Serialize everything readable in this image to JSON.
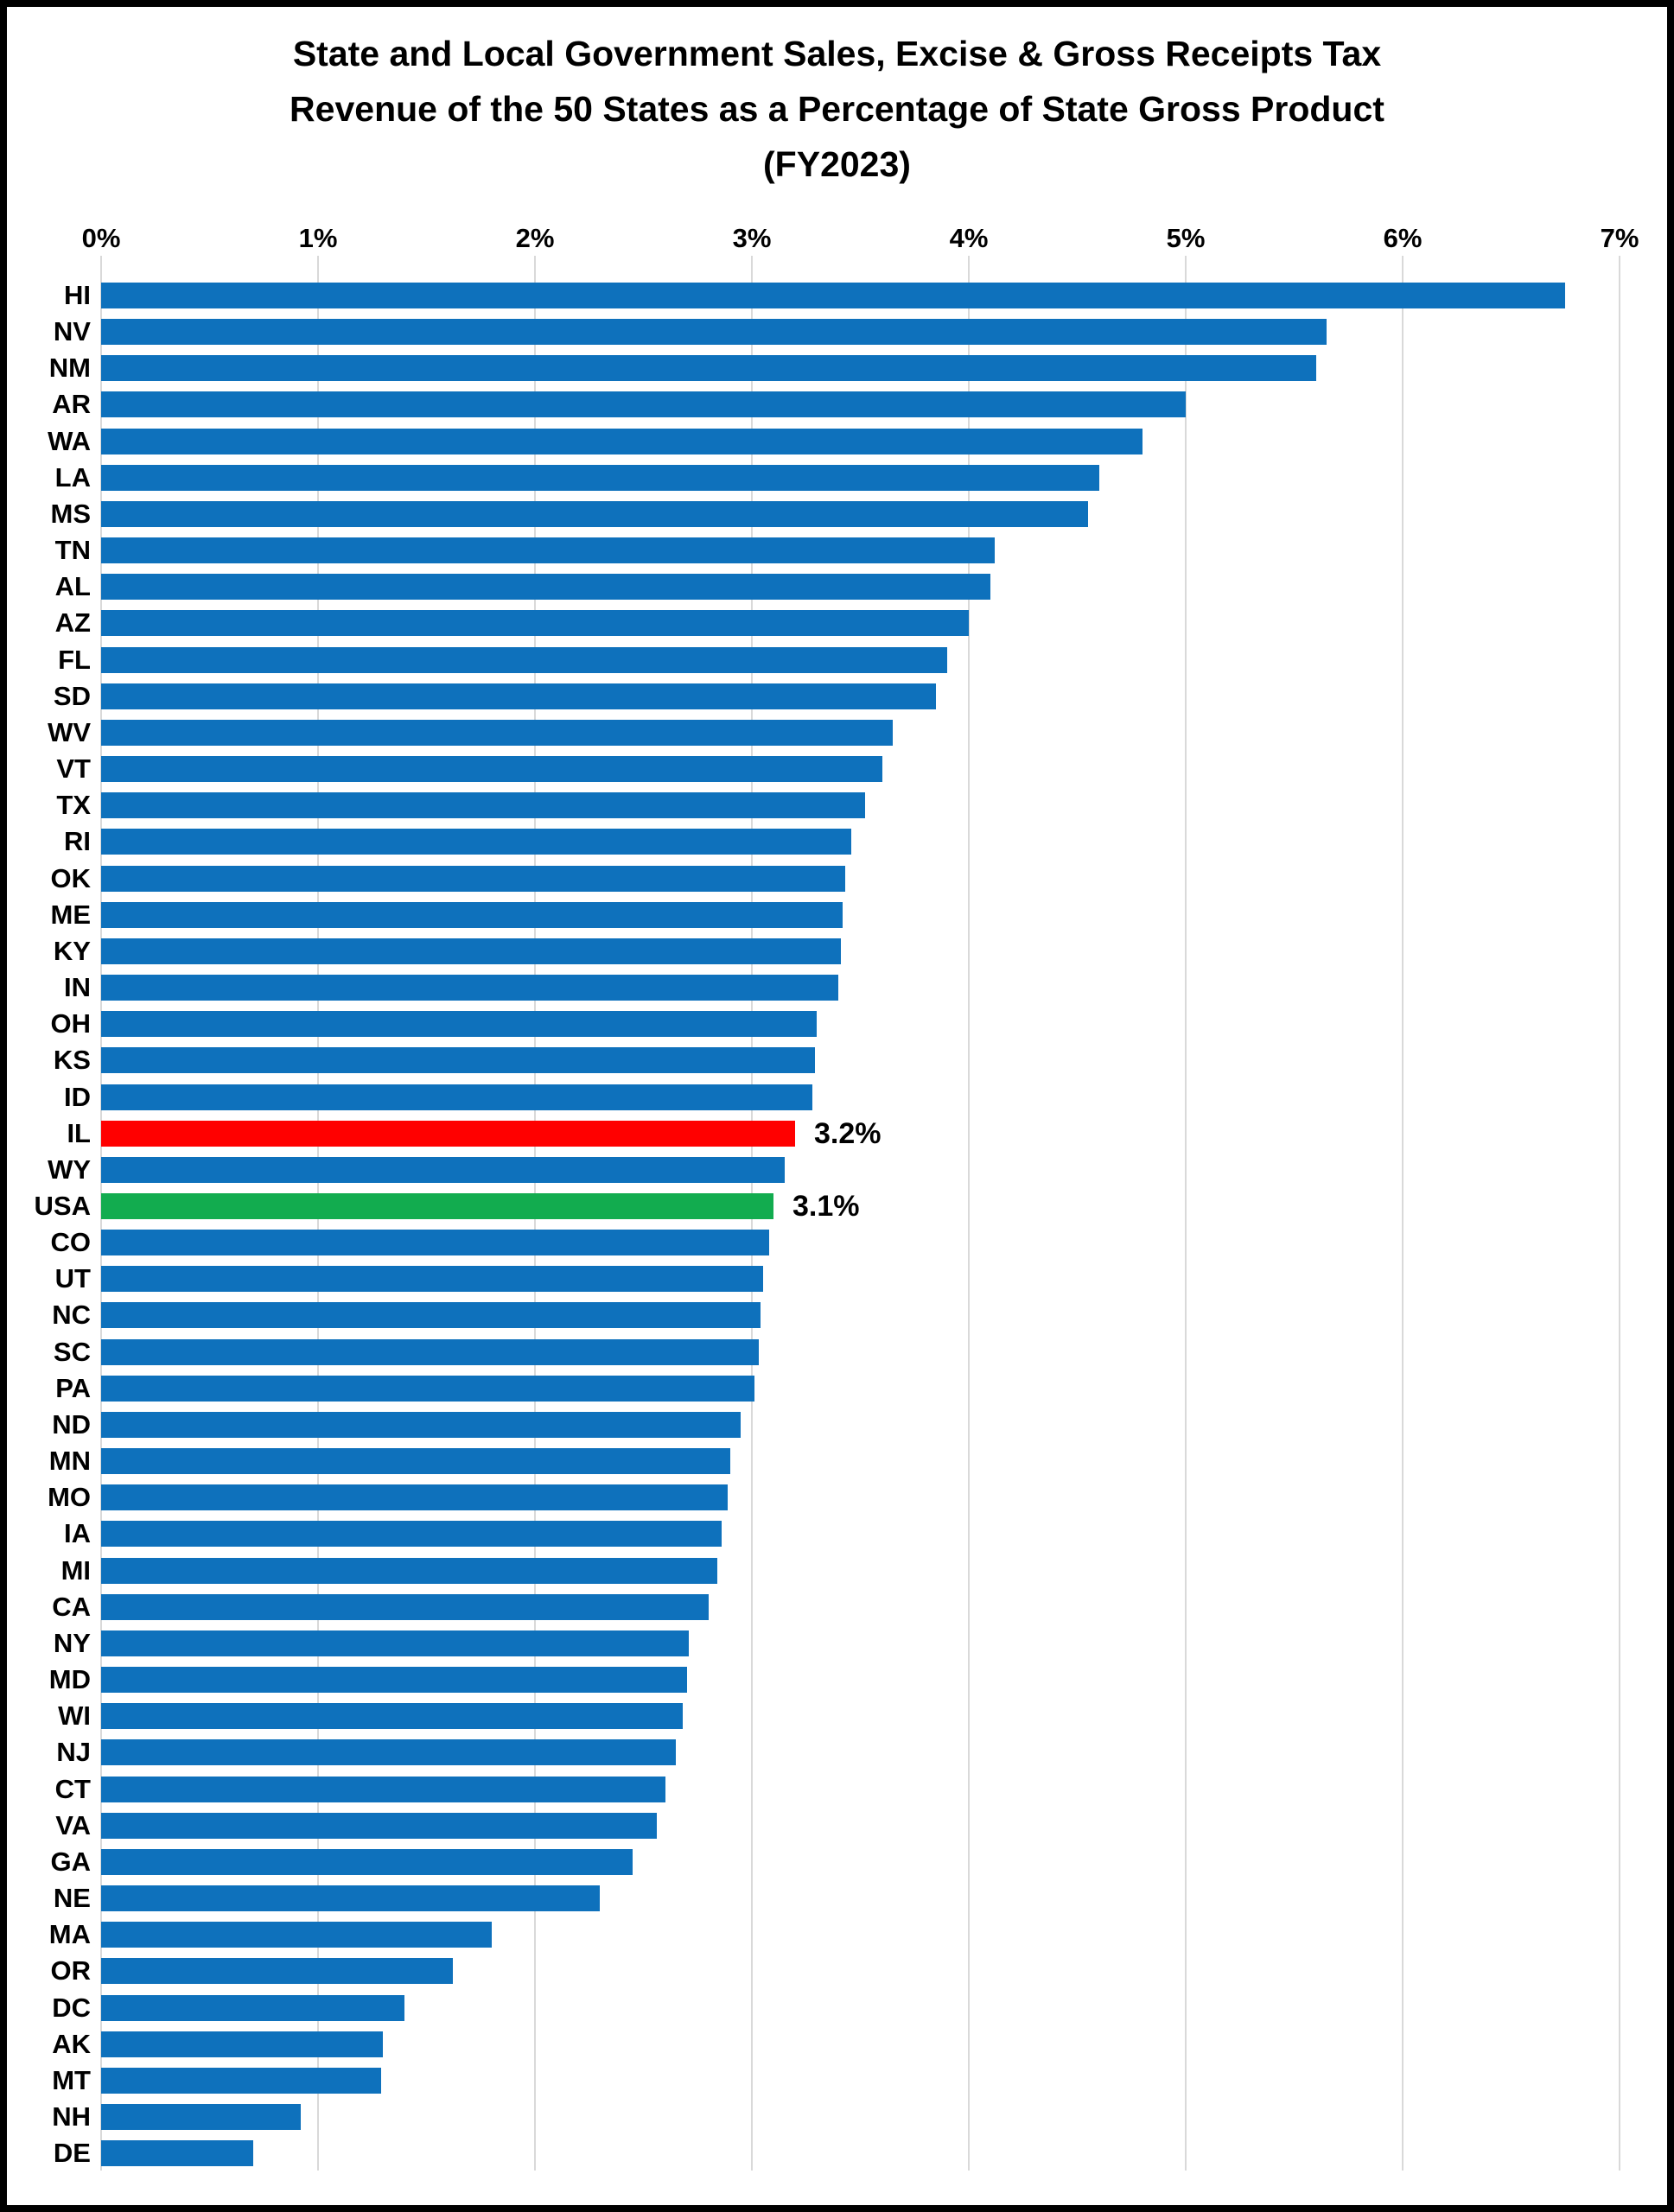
{
  "chart_data": {
    "type": "bar",
    "orientation": "horizontal",
    "title_lines": [
      "State and Local Government Sales, Excise & Gross Receipts Tax",
      "Revenue of the 50 States as a Percentage of State Gross Product",
      "(FY2023)"
    ],
    "x_ticks": [
      "0%",
      "1%",
      "2%",
      "3%",
      "4%",
      "5%",
      "6%",
      "7%"
    ],
    "xlim": [
      0,
      7
    ],
    "grid": true,
    "unit": "percent of state gross product",
    "colors": {
      "bar_default": "#0e71bc",
      "bar_highlight_red": "#ff0000",
      "bar_highlight_green": "#12ac4f",
      "gridline": "#d9d9d9",
      "text": "#000000"
    },
    "rows": [
      {
        "state": "HI",
        "value": 6.75
      },
      {
        "state": "NV",
        "value": 5.65
      },
      {
        "state": "NM",
        "value": 5.6
      },
      {
        "state": "AR",
        "value": 5.0
      },
      {
        "state": "WA",
        "value": 4.8
      },
      {
        "state": "LA",
        "value": 4.6
      },
      {
        "state": "MS",
        "value": 4.55
      },
      {
        "state": "TN",
        "value": 4.12
      },
      {
        "state": "AL",
        "value": 4.1
      },
      {
        "state": "AZ",
        "value": 4.0
      },
      {
        "state": "FL",
        "value": 3.9
      },
      {
        "state": "SD",
        "value": 3.85
      },
      {
        "state": "WV",
        "value": 3.65
      },
      {
        "state": "VT",
        "value": 3.6
      },
      {
        "state": "TX",
        "value": 3.52
      },
      {
        "state": "RI",
        "value": 3.46
      },
      {
        "state": "OK",
        "value": 3.43
      },
      {
        "state": "ME",
        "value": 3.42
      },
      {
        "state": "KY",
        "value": 3.41
      },
      {
        "state": "IN",
        "value": 3.4
      },
      {
        "state": "OH",
        "value": 3.3
      },
      {
        "state": "KS",
        "value": 3.29
      },
      {
        "state": "ID",
        "value": 3.28
      },
      {
        "state": "IL",
        "value": 3.2,
        "highlight": "red",
        "annotation": "3.2%"
      },
      {
        "state": "WY",
        "value": 3.15
      },
      {
        "state": "USA",
        "value": 3.1,
        "highlight": "green",
        "annotation": "3.1%"
      },
      {
        "state": "CO",
        "value": 3.08
      },
      {
        "state": "UT",
        "value": 3.05
      },
      {
        "state": "NC",
        "value": 3.04
      },
      {
        "state": "SC",
        "value": 3.03
      },
      {
        "state": "PA",
        "value": 3.01
      },
      {
        "state": "ND",
        "value": 2.95
      },
      {
        "state": "MN",
        "value": 2.9
      },
      {
        "state": "MO",
        "value": 2.89
      },
      {
        "state": "IA",
        "value": 2.86
      },
      {
        "state": "MI",
        "value": 2.84
      },
      {
        "state": "CA",
        "value": 2.8
      },
      {
        "state": "NY",
        "value": 2.71
      },
      {
        "state": "MD",
        "value": 2.7
      },
      {
        "state": "WI",
        "value": 2.68
      },
      {
        "state": "NJ",
        "value": 2.65
      },
      {
        "state": "CT",
        "value": 2.6
      },
      {
        "state": "VA",
        "value": 2.56
      },
      {
        "state": "GA",
        "value": 2.45
      },
      {
        "state": "NE",
        "value": 2.3
      },
      {
        "state": "MA",
        "value": 1.8
      },
      {
        "state": "OR",
        "value": 1.62
      },
      {
        "state": "DC",
        "value": 1.4
      },
      {
        "state": "AK",
        "value": 1.3
      },
      {
        "state": "MT",
        "value": 1.29
      },
      {
        "state": "NH",
        "value": 0.92
      },
      {
        "state": "DE",
        "value": 0.7
      }
    ]
  }
}
